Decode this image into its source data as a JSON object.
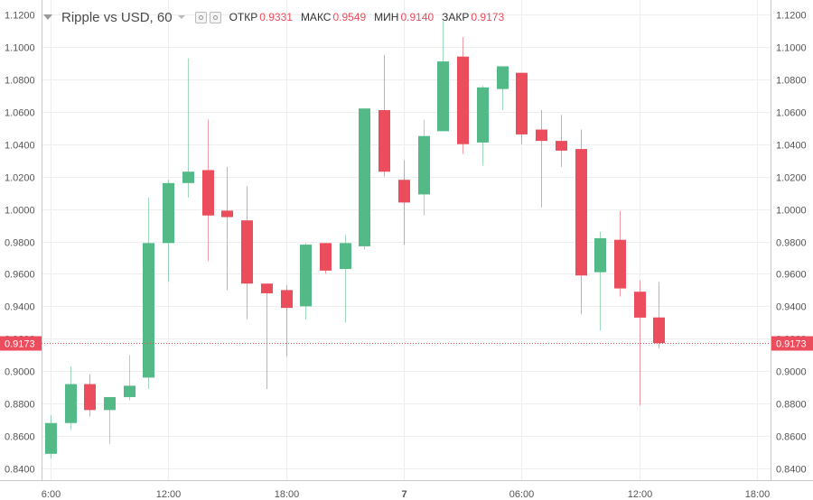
{
  "header": {
    "symbol": "Ripple vs USD, 60",
    "open_label": "ОТКР",
    "open_value": "0.9331",
    "high_label": "МАКС",
    "high_value": "0.9549",
    "low_label": "МИН",
    "low_value": "0.9140",
    "close_label": "ЗАКР",
    "close_value": "0.9173"
  },
  "colors": {
    "up": "#53b987",
    "down": "#eb4d5c",
    "grid": "#eeeeee",
    "axis_text": "#555555"
  },
  "chart_data": {
    "type": "candlestick",
    "title": "Ripple vs USD, 60",
    "ylim": [
      0.834,
      1.126
    ],
    "y_ticks": [
      "1.1200",
      "1.1000",
      "1.0800",
      "1.0600",
      "1.0400",
      "1.0200",
      "1.0000",
      "0.9800",
      "0.9600",
      "0.9400",
      "0.9200",
      "0.9000",
      "0.8800",
      "0.8600",
      "0.8400"
    ],
    "x_ticks": [
      {
        "label": "6:00",
        "index": 0
      },
      {
        "label": "12:00",
        "index": 6
      },
      {
        "label": "18:00",
        "index": 12
      },
      {
        "label": "7",
        "index": 18
      },
      {
        "label": "06:00",
        "index": 24
      },
      {
        "label": "12:00",
        "index": 30
      },
      {
        "label": "18:00",
        "index": 36
      }
    ],
    "last_price": "0.9173",
    "grid": true,
    "candles": [
      {
        "o": 0.849,
        "h": 0.873,
        "l": 0.846,
        "c": 0.868
      },
      {
        "o": 0.868,
        "h": 0.903,
        "l": 0.864,
        "c": 0.892
      },
      {
        "o": 0.892,
        "h": 0.898,
        "l": 0.872,
        "c": 0.876
      },
      {
        "o": 0.876,
        "h": 0.884,
        "l": 0.855,
        "c": 0.884
      },
      {
        "o": 0.884,
        "h": 0.91,
        "l": 0.882,
        "c": 0.891
      },
      {
        "o": 0.896,
        "h": 1.007,
        "l": 0.889,
        "c": 0.979
      },
      {
        "o": 0.979,
        "h": 1.018,
        "l": 0.955,
        "c": 1.016
      },
      {
        "o": 1.016,
        "h": 1.093,
        "l": 1.007,
        "c": 1.023
      },
      {
        "o": 1.024,
        "h": 1.055,
        "l": 0.968,
        "c": 0.996
      },
      {
        "o": 0.999,
        "h": 1.026,
        "l": 0.95,
        "c": 0.995
      },
      {
        "o": 0.993,
        "h": 1.014,
        "l": 0.932,
        "c": 0.954
      },
      {
        "o": 0.954,
        "h": 0.953,
        "l": 0.889,
        "c": 0.948
      },
      {
        "o": 0.95,
        "h": 0.953,
        "l": 0.909,
        "c": 0.939
      },
      {
        "o": 0.94,
        "h": 0.979,
        "l": 0.932,
        "c": 0.978
      },
      {
        "o": 0.979,
        "h": 0.979,
        "l": 0.96,
        "c": 0.962
      },
      {
        "o": 0.963,
        "h": 0.984,
        "l": 0.93,
        "c": 0.979
      },
      {
        "o": 0.977,
        "h": 1.062,
        "l": 0.975,
        "c": 1.062
      },
      {
        "o": 1.061,
        "h": 1.095,
        "l": 1.02,
        "c": 1.023
      },
      {
        "o": 1.018,
        "h": 1.03,
        "l": 0.978,
        "c": 1.004
      },
      {
        "o": 1.009,
        "h": 1.055,
        "l": 0.996,
        "c": 1.045
      },
      {
        "o": 1.048,
        "h": 1.116,
        "l": 1.048,
        "c": 1.091
      },
      {
        "o": 1.094,
        "h": 1.106,
        "l": 1.034,
        "c": 1.04
      },
      {
        "o": 1.041,
        "h": 1.076,
        "l": 1.027,
        "c": 1.075
      },
      {
        "o": 1.074,
        "h": 1.088,
        "l": 1.061,
        "c": 1.088
      },
      {
        "o": 1.084,
        "h": 1.084,
        "l": 1.04,
        "c": 1.046
      },
      {
        "o": 1.049,
        "h": 1.061,
        "l": 1.001,
        "c": 1.042
      },
      {
        "o": 1.042,
        "h": 1.058,
        "l": 1.026,
        "c": 1.036
      },
      {
        "o": 1.037,
        "h": 1.049,
        "l": 0.935,
        "c": 0.959
      },
      {
        "o": 0.961,
        "h": 0.986,
        "l": 0.925,
        "c": 0.982
      },
      {
        "o": 0.981,
        "h": 0.999,
        "l": 0.946,
        "c": 0.951
      },
      {
        "o": 0.949,
        "h": 0.956,
        "l": 0.879,
        "c": 0.933
      },
      {
        "o": 0.9331,
        "h": 0.9549,
        "l": 0.914,
        "c": 0.9173
      }
    ]
  }
}
